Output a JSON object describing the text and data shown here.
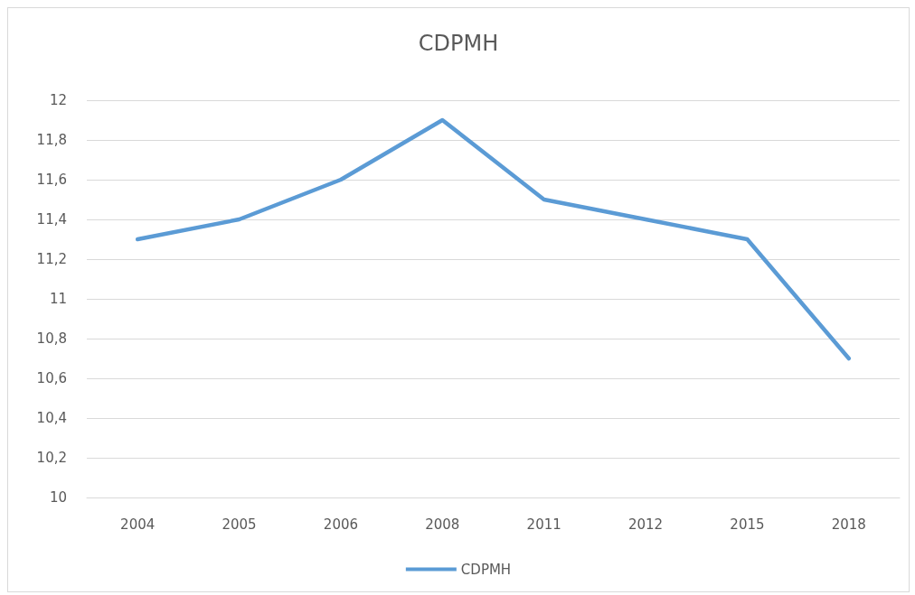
{
  "chart_data": {
    "type": "line",
    "title": "CDPMH",
    "categories": [
      "2004",
      "2005",
      "2006",
      "2008",
      "2011",
      "2012",
      "2015",
      "2018"
    ],
    "series": [
      {
        "name": "CDPMH",
        "color": "#5b9bd5",
        "values": [
          11.3,
          11.4,
          11.6,
          11.9,
          11.5,
          11.4,
          11.3,
          10.7
        ]
      }
    ],
    "ylim": [
      10,
      12
    ],
    "yticks": [
      10,
      {
        "value": 10.2,
        "label": "10,2"
      },
      {
        "value": 10.4,
        "label": "10,4"
      },
      {
        "value": 10.6,
        "label": "10,6"
      },
      {
        "value": 10.8,
        "label": "10,8"
      },
      11,
      {
        "value": 11.2,
        "label": "11,2"
      },
      {
        "value": 11.4,
        "label": "11,4"
      },
      {
        "value": 11.6,
        "label": "11,6"
      },
      {
        "value": 11.8,
        "label": "11,8"
      },
      12
    ],
    "grid": "y",
    "legend": "bottom",
    "marker": "none",
    "line_style": "solid"
  }
}
